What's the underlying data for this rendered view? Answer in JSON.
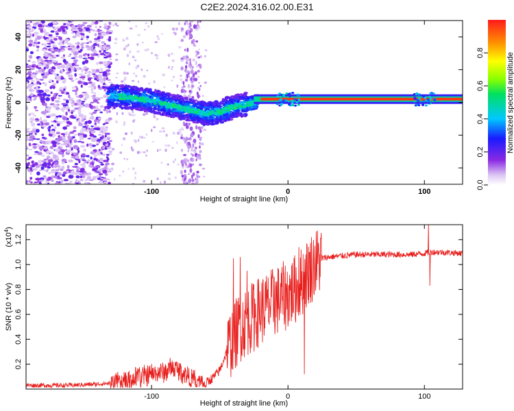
{
  "title": "C2E2.2024.316.02.00.E31",
  "chart_data": [
    {
      "type": "heatmap",
      "xlabel": "Height of straight line (km)",
      "ylabel": "Frequency (Hz)",
      "xlim": [
        -192,
        128
      ],
      "ylim": [
        -50,
        50
      ],
      "xticks": [
        -100,
        0,
        100
      ],
      "yticks": [
        -40,
        -20,
        0,
        20,
        40
      ],
      "colorbar": {
        "label": "Normalized spectral amplitude",
        "range": [
          0.0,
          1.0
        ],
        "ticks": [
          0.0,
          0.2,
          0.4,
          0.6,
          0.8
        ]
      },
      "ridge": {
        "x": [
          -130,
          -115,
          -100,
          -90,
          -80,
          -70,
          -60,
          -50,
          -45,
          -40,
          -35,
          -30,
          -25,
          -20,
          -15,
          -10,
          -5,
          0,
          20,
          60,
          100,
          128
        ],
        "y": [
          4,
          3,
          1,
          -1,
          -3,
          -5,
          -7,
          -6,
          -4,
          -3,
          -2,
          -1,
          0,
          1,
          1,
          2,
          2,
          2,
          2,
          2,
          2,
          2
        ]
      },
      "grid": false
    },
    {
      "type": "line",
      "xlabel": "Height of straight line (km)",
      "ylabel": "SNR (10 * v/v)",
      "y_multiplier": "(x10",
      "y_multiplier_exp": "4",
      "y_multiplier_close": ")",
      "xlim": [
        -192,
        128
      ],
      "ylim": [
        0,
        1.32
      ],
      "xticks": [
        -100,
        0,
        100
      ],
      "yticks": [
        0.2,
        0.4,
        0.6,
        0.8,
        1.0,
        1.2
      ],
      "series": [
        {
          "color": "#e8201e",
          "x": [
            -192,
            -160,
            -140,
            -125,
            -110,
            -100,
            -90,
            -85,
            -80,
            -75,
            -70,
            -65,
            -60,
            -55,
            -50,
            -45,
            -40,
            -35,
            -30,
            -25,
            -20,
            -15,
            -10,
            -5,
            0,
            5,
            10,
            15,
            20,
            25,
            30,
            40,
            50,
            70,
            90,
            100,
            105,
            110,
            128
          ],
          "values": [
            0.03,
            0.03,
            0.04,
            0.05,
            0.09,
            0.12,
            0.14,
            0.17,
            0.15,
            0.12,
            0.08,
            0.05,
            0.05,
            0.09,
            0.15,
            0.3,
            0.42,
            0.5,
            0.55,
            0.58,
            0.64,
            0.66,
            0.7,
            0.73,
            0.76,
            0.8,
            0.86,
            0.95,
            1.01,
            1.05,
            1.06,
            1.07,
            1.08,
            1.08,
            1.08,
            1.09,
            1.1,
            1.1,
            1.09
          ]
        }
      ],
      "spikes": [
        {
          "x": -40,
          "y": 1.05
        },
        {
          "x": -35,
          "y": 1.06
        },
        {
          "x": -30,
          "y": 0.95
        },
        {
          "x": -25,
          "y": 0.84
        },
        {
          "x": -10,
          "y": 0.9
        },
        {
          "x": 8,
          "y": 1.14
        },
        {
          "x": 12,
          "y": 0.12
        },
        {
          "x": 103,
          "y": 1.32
        },
        {
          "x": 104,
          "y": 0.83
        }
      ],
      "grid": false
    }
  ]
}
